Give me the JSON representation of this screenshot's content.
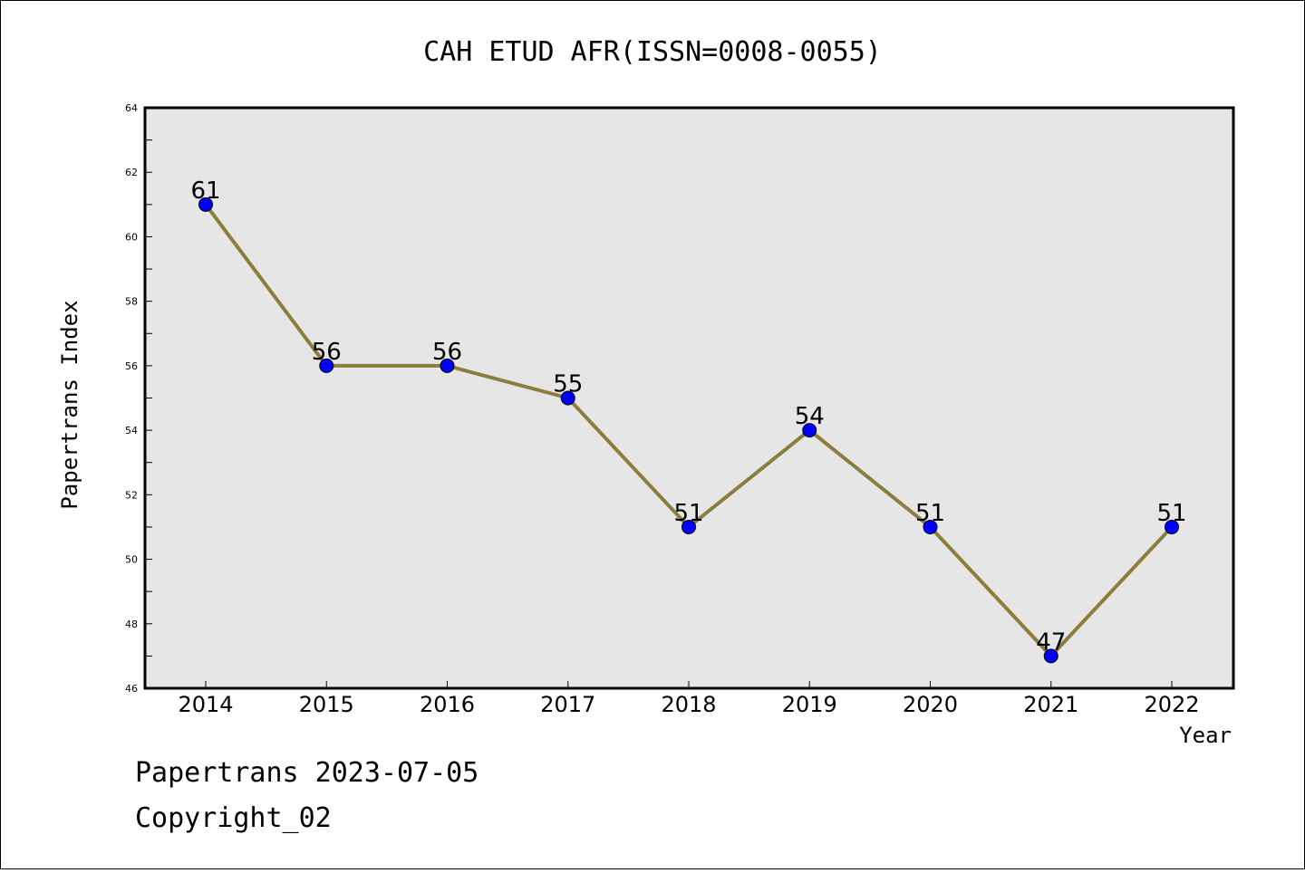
{
  "chart_data": {
    "type": "line",
    "title": "CAH ETUD AFR(ISSN=0008-0055)",
    "xlabel": "Year",
    "ylabel": "Papertrans Index",
    "categories": [
      "2014",
      "2015",
      "2016",
      "2017",
      "2018",
      "2019",
      "2020",
      "2021",
      "2022"
    ],
    "series": [
      {
        "values": [
          61,
          56,
          56,
          55,
          51,
          54,
          51,
          47,
          51
        ]
      }
    ],
    "ylim": [
      46,
      64
    ],
    "yticks": [
      46,
      48,
      50,
      52,
      54,
      56,
      58,
      60,
      62,
      64
    ],
    "grid": false,
    "colors": {
      "line": "#8b7d3a",
      "marker": "#0000ff",
      "plot_background": "#e6e6e6"
    }
  },
  "footer": {
    "line1": "Papertrans 2023-07-05",
    "line2": "Copyright_02"
  }
}
